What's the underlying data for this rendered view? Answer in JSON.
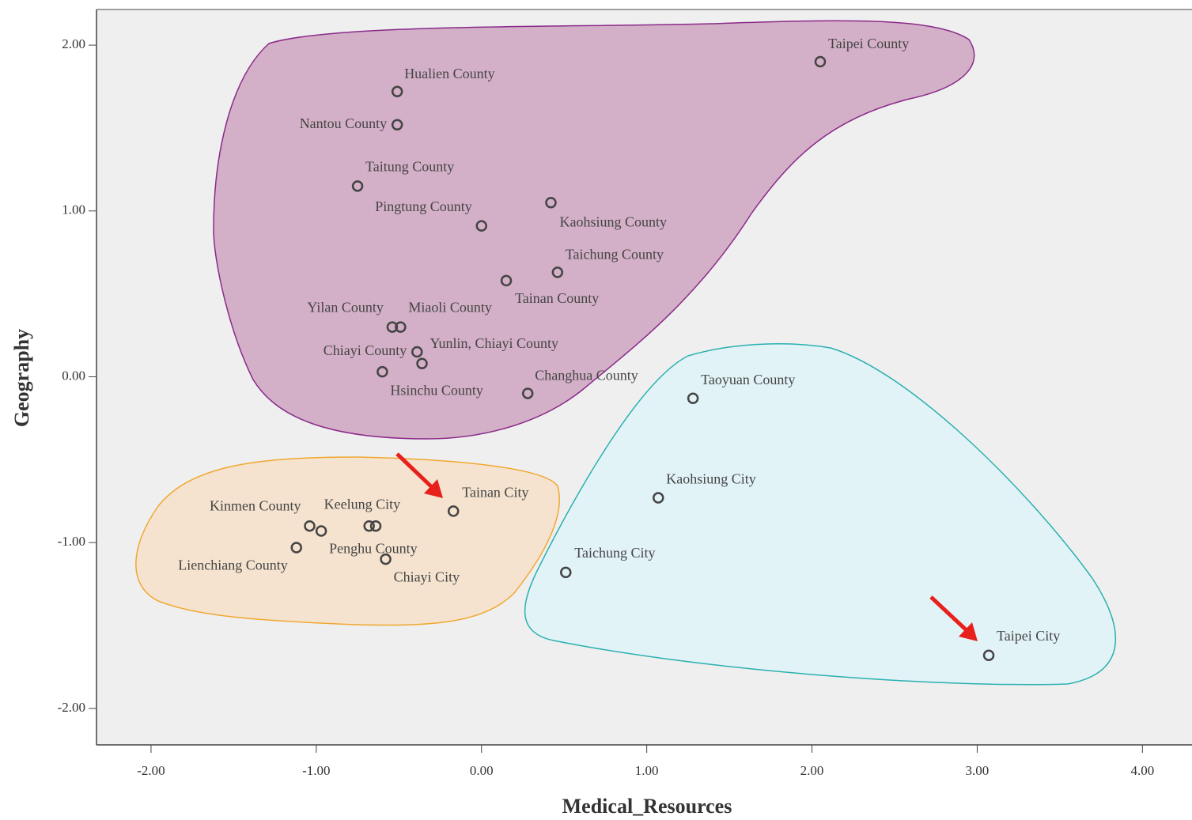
{
  "chart_data": {
    "type": "scatter",
    "xlabel": "Medical_Resources",
    "ylabel": "Geography",
    "x": [
      2.05,
      -0.51,
      -0.51,
      -0.75,
      0.0,
      0.42,
      0.46,
      0.15,
      -0.54,
      -0.49,
      -0.39,
      -0.36,
      -0.6,
      0.28,
      1.28,
      1.07,
      0.51,
      3.07,
      -0.17,
      -0.68,
      -0.64,
      -1.04,
      -0.97,
      -1.12,
      -0.58
    ],
    "y": [
      1.9,
      1.72,
      1.52,
      1.15,
      0.91,
      1.05,
      0.63,
      0.58,
      0.3,
      0.3,
      0.15,
      0.08,
      0.03,
      -0.1,
      -0.13,
      -0.73,
      -1.18,
      -1.68,
      -0.81,
      -0.9,
      -0.9,
      -0.9,
      -0.93,
      -1.03,
      -1.1
    ],
    "labels": [
      "Taipei County",
      "Hualien County",
      "Nantou County",
      "Taitung County",
      "Pingtung County",
      "Kaohsiung County",
      "Taichung County",
      "Tainan County",
      "Yilan County",
      "Miaoli County",
      "Chiayi County",
      "Yunlin, Chiayi County",
      "Hsinchu County",
      "Changhua County",
      "Taoyuan County",
      "Kaohsiung City",
      "Taichung City",
      "Taipei City",
      "Tainan City",
      "Keelung City",
      null,
      "Kinmen County",
      "Penghu County",
      "Lienchiang County",
      "Chiayi City"
    ],
    "xlim": [
      -2.33,
      4.3
    ],
    "ylim": [
      -2.22,
      2.215
    ],
    "xticks": [
      {
        "value": -2,
        "label": "-2.00"
      },
      {
        "value": -1,
        "label": "-1.00"
      },
      {
        "value": 0,
        "label": "0.00"
      },
      {
        "value": 1,
        "label": "1.00"
      },
      {
        "value": 2,
        "label": "2.00"
      },
      {
        "value": 3,
        "label": "3.00"
      },
      {
        "value": 4,
        "label": "4.00"
      }
    ],
    "yticks": [
      {
        "value": -2,
        "label": "-2.00"
      },
      {
        "value": -1,
        "label": "-1.00"
      },
      {
        "value": 0,
        "label": "0.00"
      },
      {
        "value": 1,
        "label": "1.00"
      },
      {
        "value": 2,
        "label": "2.00"
      }
    ],
    "grid": false
  }
}
